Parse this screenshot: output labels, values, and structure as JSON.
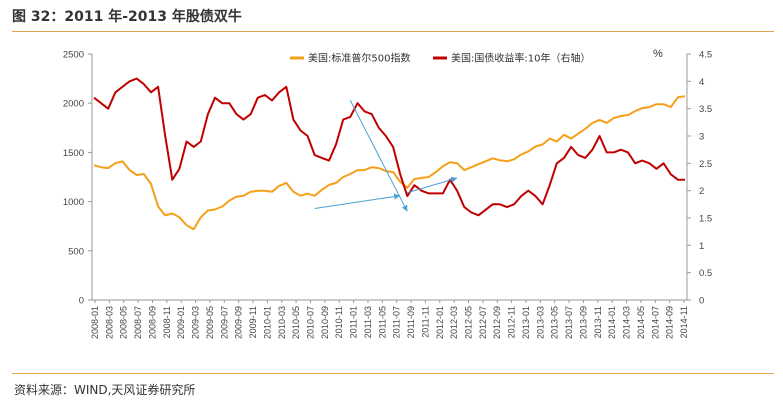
{
  "figure": {
    "title": "图 32：2011 年-2013 年股债双牛",
    "source": "资料来源：WIND,天风证券研究所"
  },
  "colors": {
    "accent_rule": "#e7a24e",
    "sp500": "#f5a01a",
    "yield": "#c00000",
    "arrow": "#4f9fd6"
  },
  "chart_data": {
    "type": "line",
    "title": "",
    "xlabel": "",
    "ylabel_left": "",
    "ylabel_right": "%",
    "y_left_lim": [
      0,
      2500
    ],
    "y_left_ticks": [
      0,
      500,
      1000,
      1500,
      2000,
      2500
    ],
    "y_right_lim": [
      0,
      4.5
    ],
    "y_right_ticks": [
      0,
      0.5,
      1,
      1.5,
      2,
      2.5,
      3,
      3.5,
      4,
      4.5
    ],
    "x_tick_labels": [
      "2008-01",
      "2008-03",
      "2008-05",
      "2008-07",
      "2008-09",
      "2008-11",
      "2009-01",
      "2009-03",
      "2009-05",
      "2009-07",
      "2009-09",
      "2009-11",
      "2010-01",
      "2010-03",
      "2010-05",
      "2010-07",
      "2010-09",
      "2010-11",
      "2011-01",
      "2011-03",
      "2011-05",
      "2011-07",
      "2011-09",
      "2011-11",
      "2012-01",
      "2012-03",
      "2012-05",
      "2012-07",
      "2012-09",
      "2012-11",
      "2013-01",
      "2013-03",
      "2013-05",
      "2013-07",
      "2013-09",
      "2013-11",
      "2014-01",
      "2014-03",
      "2014-05",
      "2014-07",
      "2014-09",
      "2014-11"
    ],
    "grid": false,
    "legend_position": "top",
    "x": [
      "2008-01",
      "2008-02",
      "2008-03",
      "2008-04",
      "2008-05",
      "2008-06",
      "2008-07",
      "2008-08",
      "2008-09",
      "2008-10",
      "2008-11",
      "2008-12",
      "2009-01",
      "2009-02",
      "2009-03",
      "2009-04",
      "2009-05",
      "2009-06",
      "2009-07",
      "2009-08",
      "2009-09",
      "2009-10",
      "2009-11",
      "2009-12",
      "2010-01",
      "2010-02",
      "2010-03",
      "2010-04",
      "2010-05",
      "2010-06",
      "2010-07",
      "2010-08",
      "2010-09",
      "2010-10",
      "2010-11",
      "2010-12",
      "2011-01",
      "2011-02",
      "2011-03",
      "2011-04",
      "2011-05",
      "2011-06",
      "2011-07",
      "2011-08",
      "2011-09",
      "2011-10",
      "2011-11",
      "2011-12",
      "2012-01",
      "2012-02",
      "2012-03",
      "2012-04",
      "2012-05",
      "2012-06",
      "2012-07",
      "2012-08",
      "2012-09",
      "2012-10",
      "2012-11",
      "2012-12",
      "2013-01",
      "2013-02",
      "2013-03",
      "2013-04",
      "2013-05",
      "2013-06",
      "2013-07",
      "2013-08",
      "2013-09",
      "2013-10",
      "2013-11",
      "2013-12",
      "2014-01",
      "2014-02",
      "2014-03",
      "2014-04",
      "2014-05",
      "2014-06",
      "2014-07",
      "2014-08",
      "2014-09",
      "2014-10",
      "2014-11",
      "2014-12"
    ],
    "series": [
      {
        "name": "美国:标准普尔500指数",
        "axis": "left",
        "color": "#f5a01a",
        "values": [
          1370,
          1350,
          1340,
          1390,
          1410,
          1320,
          1270,
          1280,
          1180,
          950,
          860,
          880,
          840,
          760,
          720,
          840,
          910,
          920,
          950,
          1010,
          1050,
          1060,
          1100,
          1110,
          1110,
          1100,
          1160,
          1190,
          1100,
          1060,
          1080,
          1060,
          1120,
          1170,
          1190,
          1250,
          1280,
          1320,
          1320,
          1350,
          1340,
          1310,
          1300,
          1200,
          1140,
          1230,
          1240,
          1250,
          1300,
          1360,
          1400,
          1390,
          1320,
          1350,
          1380,
          1410,
          1440,
          1420,
          1410,
          1430,
          1480,
          1510,
          1560,
          1580,
          1640,
          1610,
          1680,
          1640,
          1690,
          1740,
          1800,
          1830,
          1800,
          1850,
          1870,
          1880,
          1920,
          1950,
          1960,
          1990,
          1990,
          1960,
          2060,
          2070
        ]
      },
      {
        "name": "美国:国债收益率:10年（右轴）",
        "axis": "right",
        "color": "#c00000",
        "values": [
          3.7,
          3.6,
          3.5,
          3.8,
          3.9,
          4.0,
          4.05,
          3.95,
          3.8,
          3.9,
          3.0,
          2.2,
          2.4,
          2.9,
          2.8,
          2.9,
          3.4,
          3.7,
          3.6,
          3.6,
          3.4,
          3.3,
          3.4,
          3.7,
          3.75,
          3.65,
          3.8,
          3.9,
          3.3,
          3.1,
          3.0,
          2.65,
          2.6,
          2.55,
          2.85,
          3.3,
          3.35,
          3.6,
          3.45,
          3.4,
          3.15,
          3.0,
          2.8,
          2.3,
          1.9,
          2.1,
          2.0,
          1.95,
          1.95,
          1.95,
          2.2,
          2.0,
          1.7,
          1.6,
          1.55,
          1.65,
          1.75,
          1.75,
          1.7,
          1.75,
          1.9,
          2.0,
          1.9,
          1.75,
          2.1,
          2.5,
          2.6,
          2.8,
          2.65,
          2.6,
          2.75,
          3.0,
          2.7,
          2.7,
          2.75,
          2.7,
          2.5,
          2.55,
          2.5,
          2.4,
          2.5,
          2.3,
          2.2,
          2.2
        ]
      }
    ]
  }
}
